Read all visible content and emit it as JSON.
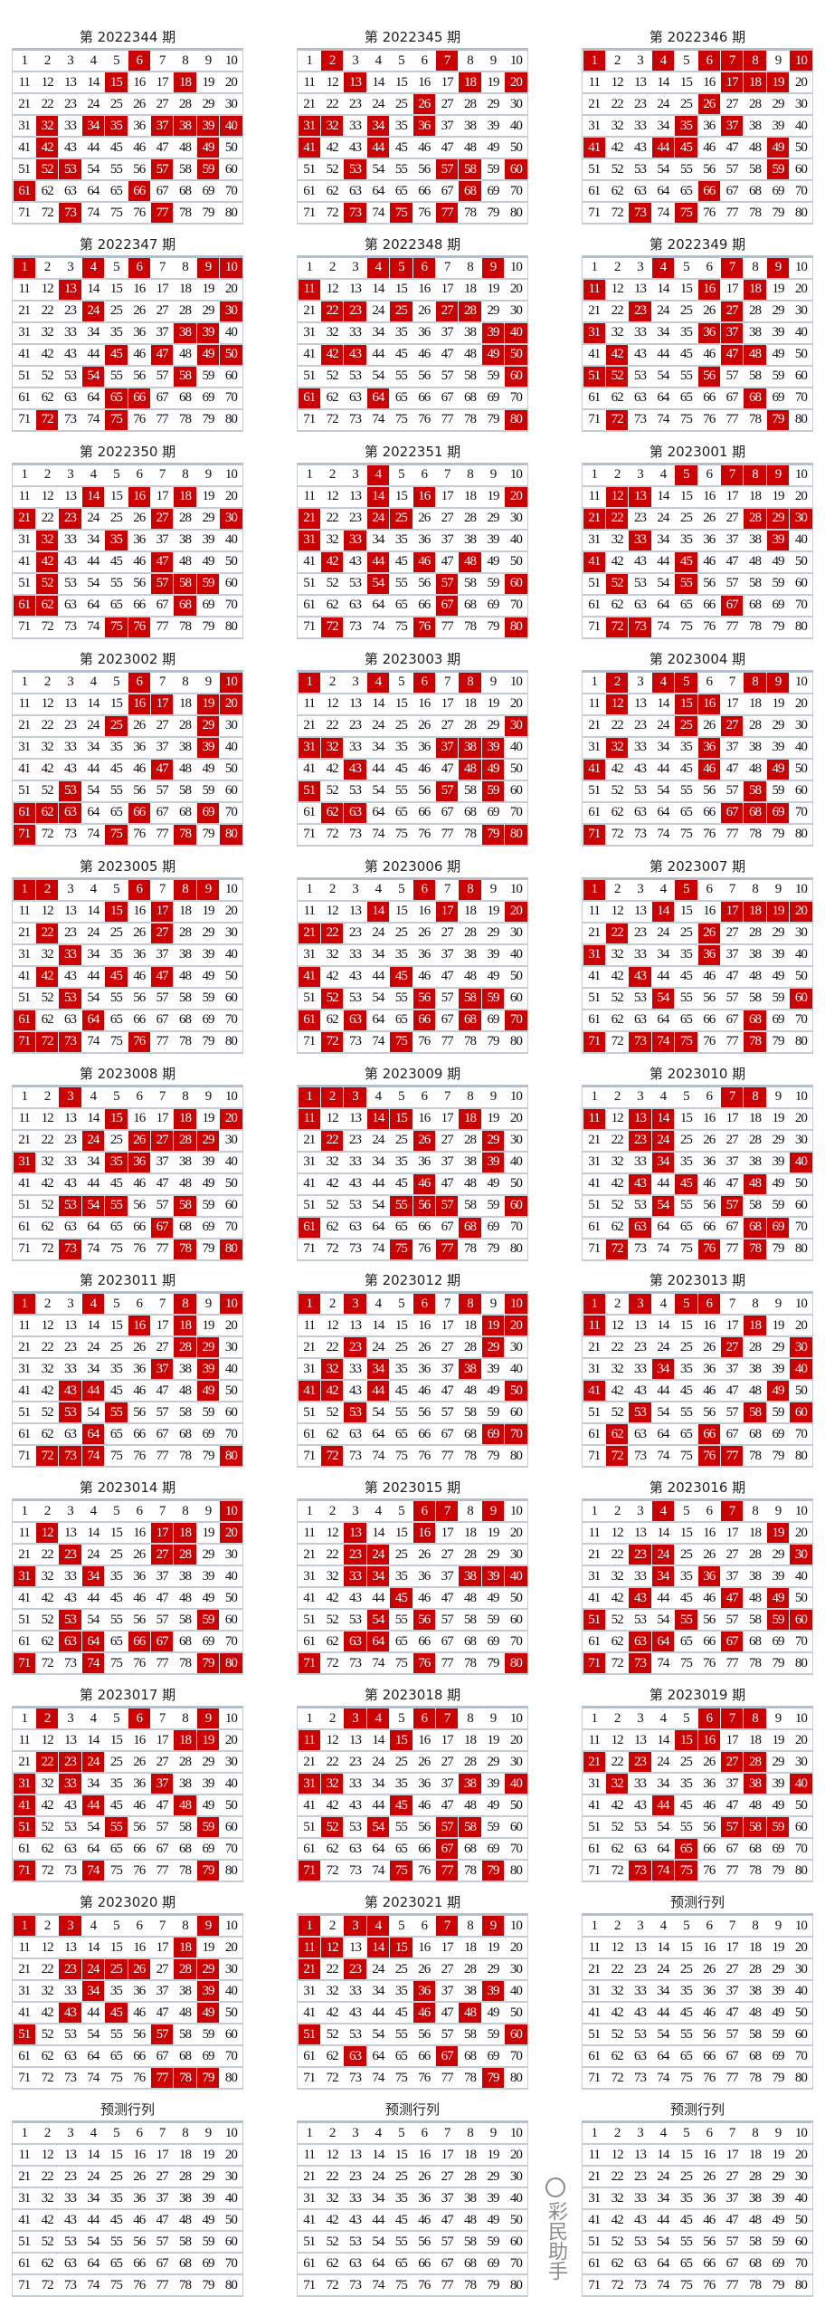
{
  "colors": {
    "hit": "#cc0000",
    "border": "#c4ccd6",
    "text": "#111111"
  },
  "grid_numbers": [
    1,
    2,
    3,
    4,
    5,
    6,
    7,
    8,
    9,
    10,
    11,
    12,
    13,
    14,
    15,
    16,
    17,
    18,
    19,
    20,
    21,
    22,
    23,
    24,
    25,
    26,
    27,
    28,
    29,
    30,
    31,
    32,
    33,
    34,
    35,
    36,
    37,
    38,
    39,
    40,
    41,
    42,
    43,
    44,
    45,
    46,
    47,
    48,
    49,
    50,
    51,
    52,
    53,
    54,
    55,
    56,
    57,
    58,
    59,
    60,
    61,
    62,
    63,
    64,
    65,
    66,
    67,
    68,
    69,
    70,
    71,
    72,
    73,
    74,
    75,
    76,
    77,
    78,
    79,
    80
  ],
  "panels": [
    {
      "title": "第 2022344 期",
      "hits": [
        6,
        15,
        18,
        32,
        34,
        35,
        37,
        38,
        39,
        40,
        42,
        49,
        52,
        53,
        57,
        59,
        61,
        66,
        73,
        77
      ]
    },
    {
      "title": "第 2022345 期",
      "hits": [
        2,
        7,
        13,
        18,
        20,
        26,
        31,
        32,
        34,
        36,
        41,
        44,
        53,
        57,
        58,
        60,
        68,
        73,
        75,
        77
      ]
    },
    {
      "title": "第 2022346 期",
      "hits": [
        1,
        4,
        6,
        7,
        8,
        10,
        17,
        18,
        19,
        26,
        35,
        37,
        41,
        44,
        45,
        49,
        59,
        66,
        73,
        75
      ]
    },
    {
      "title": "第 2022347 期",
      "hits": [
        1,
        4,
        6,
        9,
        10,
        13,
        24,
        30,
        38,
        39,
        45,
        47,
        49,
        50,
        54,
        58,
        65,
        66,
        72,
        75
      ]
    },
    {
      "title": "第 2022348 期",
      "hits": [
        4,
        5,
        6,
        9,
        11,
        22,
        23,
        25,
        27,
        28,
        39,
        40,
        42,
        43,
        49,
        50,
        60,
        61,
        64,
        80
      ]
    },
    {
      "title": "第 2022349 期",
      "hits": [
        4,
        7,
        9,
        11,
        16,
        18,
        23,
        27,
        31,
        36,
        37,
        42,
        47,
        48,
        51,
        52,
        56,
        68,
        72,
        79
      ]
    },
    {
      "title": "第 2022350 期",
      "hits": [
        14,
        16,
        18,
        21,
        23,
        27,
        30,
        32,
        35,
        42,
        47,
        52,
        57,
        58,
        59,
        61,
        62,
        68,
        75,
        76
      ]
    },
    {
      "title": "第 2022351 期",
      "hits": [
        4,
        14,
        16,
        20,
        21,
        24,
        25,
        31,
        33,
        42,
        44,
        46,
        48,
        54,
        57,
        60,
        67,
        72,
        76,
        80
      ]
    },
    {
      "title": "第 2023001 期",
      "hits": [
        5,
        7,
        8,
        9,
        12,
        13,
        21,
        22,
        28,
        29,
        30,
        33,
        39,
        41,
        45,
        52,
        55,
        67,
        72,
        73
      ]
    },
    {
      "title": "第 2023002 期",
      "hits": [
        6,
        10,
        16,
        17,
        19,
        20,
        25,
        29,
        39,
        47,
        53,
        61,
        62,
        63,
        66,
        69,
        71,
        75,
        78,
        80
      ]
    },
    {
      "title": "第 2023003 期",
      "hits": [
        1,
        4,
        6,
        8,
        30,
        31,
        32,
        37,
        38,
        39,
        43,
        48,
        49,
        51,
        57,
        59,
        62,
        63,
        79,
        80
      ]
    },
    {
      "title": "第 2023004 期",
      "hits": [
        2,
        4,
        5,
        8,
        9,
        12,
        15,
        16,
        25,
        27,
        32,
        36,
        41,
        46,
        49,
        58,
        67,
        68,
        69,
        71
      ]
    },
    {
      "title": "第 2023005 期",
      "hits": [
        1,
        2,
        6,
        8,
        9,
        15,
        17,
        22,
        27,
        33,
        42,
        45,
        47,
        53,
        61,
        64,
        71,
        72,
        73,
        76
      ]
    },
    {
      "title": "第 2023006 期",
      "hits": [
        6,
        8,
        14,
        17,
        20,
        21,
        22,
        41,
        45,
        52,
        56,
        58,
        59,
        61,
        63,
        66,
        68,
        70,
        72,
        75
      ]
    },
    {
      "title": "第 2023007 期",
      "hits": [
        1,
        5,
        14,
        17,
        18,
        19,
        20,
        22,
        26,
        31,
        36,
        43,
        54,
        60,
        68,
        71,
        73,
        74,
        75,
        78
      ]
    },
    {
      "title": "第 2023008 期",
      "hits": [
        3,
        15,
        18,
        20,
        24,
        26,
        27,
        28,
        29,
        31,
        35,
        36,
        53,
        54,
        55,
        58,
        67,
        73,
        78,
        80
      ]
    },
    {
      "title": "第 2023009 期",
      "hits": [
        1,
        2,
        3,
        11,
        14,
        15,
        18,
        22,
        26,
        29,
        39,
        46,
        55,
        56,
        57,
        60,
        61,
        68,
        75,
        77
      ]
    },
    {
      "title": "第 2023010 期",
      "hits": [
        7,
        8,
        11,
        13,
        14,
        23,
        24,
        34,
        40,
        43,
        45,
        48,
        54,
        57,
        63,
        68,
        69,
        72,
        76,
        78
      ]
    },
    {
      "title": "第 2023011 期",
      "hits": [
        1,
        4,
        8,
        10,
        16,
        18,
        28,
        29,
        37,
        39,
        43,
        44,
        49,
        53,
        55,
        64,
        72,
        73,
        74,
        80
      ]
    },
    {
      "title": "第 2023012 期",
      "hits": [
        1,
        3,
        6,
        8,
        10,
        19,
        20,
        23,
        29,
        32,
        34,
        38,
        41,
        42,
        44,
        50,
        53,
        69,
        70,
        72
      ]
    },
    {
      "title": "第 2023013 期",
      "hits": [
        1,
        3,
        5,
        6,
        11,
        18,
        27,
        30,
        34,
        40,
        41,
        49,
        53,
        58,
        60,
        62,
        66,
        72,
        76,
        77
      ]
    },
    {
      "title": "第 2023014 期",
      "hits": [
        10,
        12,
        17,
        18,
        20,
        23,
        27,
        28,
        31,
        34,
        53,
        59,
        63,
        64,
        66,
        67,
        71,
        74,
        79,
        80
      ]
    },
    {
      "title": "第 2023015 期",
      "hits": [
        6,
        7,
        9,
        13,
        16,
        23,
        24,
        33,
        34,
        38,
        39,
        40,
        45,
        54,
        56,
        63,
        64,
        71,
        76,
        80
      ]
    },
    {
      "title": "第 2023016 期",
      "hits": [
        4,
        7,
        19,
        23,
        24,
        30,
        34,
        36,
        43,
        47,
        49,
        51,
        55,
        59,
        60,
        63,
        64,
        67,
        71,
        73
      ]
    },
    {
      "title": "第 2023017 期",
      "hits": [
        2,
        6,
        9,
        18,
        19,
        22,
        23,
        24,
        31,
        33,
        37,
        41,
        44,
        48,
        51,
        55,
        59,
        71,
        74,
        79
      ]
    },
    {
      "title": "第 2023018 期",
      "hits": [
        3,
        4,
        6,
        7,
        11,
        15,
        31,
        32,
        38,
        40,
        45,
        52,
        54,
        57,
        58,
        67,
        71,
        75,
        77,
        79
      ]
    },
    {
      "title": "第 2023019 期",
      "hits": [
        6,
        7,
        8,
        15,
        16,
        21,
        23,
        27,
        28,
        32,
        38,
        40,
        44,
        57,
        58,
        59,
        65,
        73,
        74,
        75
      ]
    },
    {
      "title": "第 2023020 期",
      "hits": [
        1,
        3,
        9,
        18,
        23,
        24,
        25,
        26,
        28,
        29,
        34,
        39,
        43,
        45,
        49,
        51,
        57,
        77,
        78,
        79
      ]
    },
    {
      "title": "第 2023021 期",
      "hits": [
        1,
        3,
        4,
        7,
        9,
        11,
        12,
        14,
        15,
        21,
        23,
        36,
        39,
        46,
        48,
        51,
        60,
        63,
        67,
        79
      ]
    },
    {
      "title": "预测行列",
      "hits": []
    },
    {
      "title": "预测行列",
      "hits": []
    },
    {
      "title": "预测行列",
      "hits": []
    },
    {
      "title": "预测行列",
      "hits": []
    }
  ],
  "watermark": "彩民助手"
}
